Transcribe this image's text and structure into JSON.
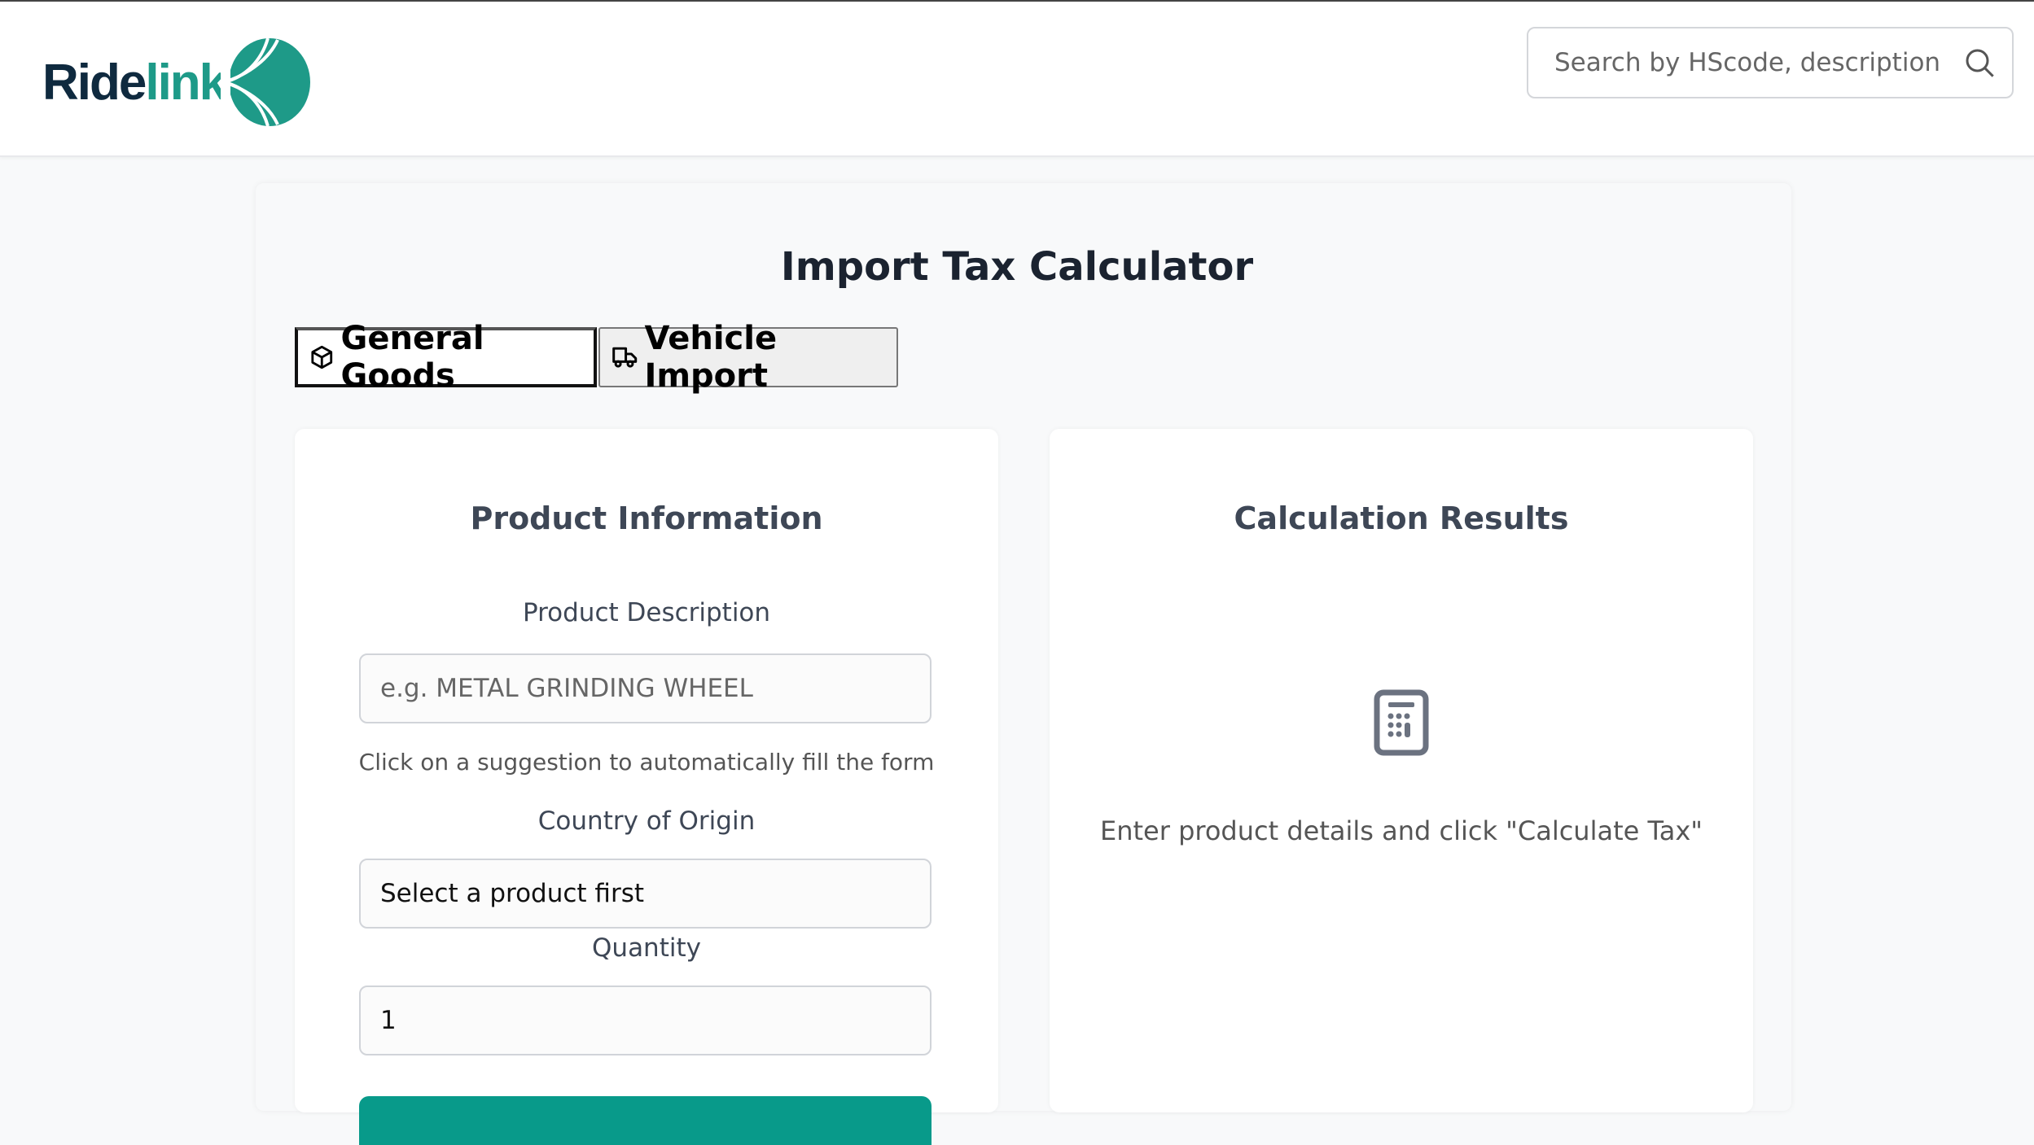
{
  "header": {
    "logo": {
      "text_dark": "Ride",
      "text_green": "link"
    },
    "search": {
      "placeholder": "Search by HScode, description",
      "icon": "search-icon"
    }
  },
  "page": {
    "title": "Import Tax Calculator",
    "tabs": [
      {
        "label": "General Goods",
        "icon": "package-icon",
        "active": true
      },
      {
        "label": "Vehicle Import",
        "icon": "truck-icon",
        "active": false
      }
    ]
  },
  "product_panel": {
    "heading": "Product Information",
    "description_label": "Product Description",
    "description_placeholder": "e.g. METAL GRINDING WHEEL",
    "help_text": "Click on a suggestion to automatically fill the form",
    "country_label": "Country of Origin",
    "country_value": "Select a product first",
    "quantity_label": "Quantity",
    "quantity_value": "1"
  },
  "results_panel": {
    "heading": "Calculation Results",
    "icon": "calculator-icon",
    "empty_text": "Enter product details and click \"Calculate Tax\""
  },
  "colors": {
    "accent": "#089a8a",
    "logo_dark": "#0f2a3f",
    "logo_green": "#1e9a88"
  }
}
